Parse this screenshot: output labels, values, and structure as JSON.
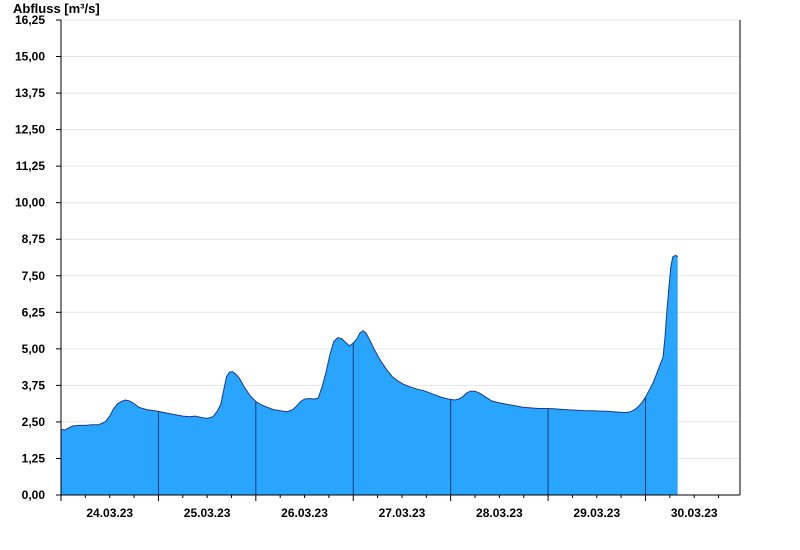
{
  "chart_data": {
    "type": "area",
    "ylabel": "Abfluss [m³/s]",
    "ylim": [
      0,
      16.25
    ],
    "yticks": [
      "0,00",
      "1,25",
      "2,50",
      "3,75",
      "5,00",
      "6,25",
      "7,50",
      "8,75",
      "10,00",
      "11,25",
      "12,50",
      "13,75",
      "15,00",
      "16,25"
    ],
    "x_day_labels": [
      "24.03.23",
      "25.03.23",
      "26.03.23",
      "27.03.23",
      "28.03.23",
      "29.03.23",
      "30.03.23"
    ],
    "grid": true,
    "colors": {
      "fill": "#29a5ff",
      "outline": "#1a3a8a",
      "grid": "#e6e6e6",
      "day_separator": "#1a3a6a"
    },
    "x_unit": "days since start of plotted period (23.03.23)",
    "series": [
      {
        "points": [
          [
            0.0,
            2.25
          ],
          [
            0.04,
            2.22
          ],
          [
            0.08,
            2.3
          ],
          [
            0.12,
            2.36
          ],
          [
            0.18,
            2.38
          ],
          [
            0.25,
            2.38
          ],
          [
            0.32,
            2.4
          ],
          [
            0.38,
            2.4
          ],
          [
            0.42,
            2.45
          ],
          [
            0.46,
            2.52
          ],
          [
            0.5,
            2.7
          ],
          [
            0.54,
            2.95
          ],
          [
            0.58,
            3.12
          ],
          [
            0.62,
            3.2
          ],
          [
            0.66,
            3.25
          ],
          [
            0.7,
            3.22
          ],
          [
            0.74,
            3.15
          ],
          [
            0.8,
            3.0
          ],
          [
            0.88,
            2.92
          ],
          [
            0.96,
            2.88
          ],
          [
            1.0,
            2.86
          ],
          [
            1.06,
            2.82
          ],
          [
            1.12,
            2.78
          ],
          [
            1.18,
            2.74
          ],
          [
            1.25,
            2.7
          ],
          [
            1.32,
            2.68
          ],
          [
            1.38,
            2.7
          ],
          [
            1.44,
            2.65
          ],
          [
            1.5,
            2.62
          ],
          [
            1.56,
            2.68
          ],
          [
            1.6,
            2.85
          ],
          [
            1.64,
            3.1
          ],
          [
            1.67,
            3.6
          ],
          [
            1.7,
            4.05
          ],
          [
            1.73,
            4.2
          ],
          [
            1.76,
            4.22
          ],
          [
            1.79,
            4.15
          ],
          [
            1.83,
            4.0
          ],
          [
            1.88,
            3.7
          ],
          [
            1.94,
            3.4
          ],
          [
            2.0,
            3.2
          ],
          [
            2.06,
            3.08
          ],
          [
            2.12,
            3.0
          ],
          [
            2.18,
            2.92
          ],
          [
            2.25,
            2.88
          ],
          [
            2.32,
            2.85
          ],
          [
            2.38,
            2.92
          ],
          [
            2.42,
            3.05
          ],
          [
            2.46,
            3.2
          ],
          [
            2.5,
            3.28
          ],
          [
            2.55,
            3.3
          ],
          [
            2.6,
            3.28
          ],
          [
            2.64,
            3.32
          ],
          [
            2.68,
            3.7
          ],
          [
            2.72,
            4.2
          ],
          [
            2.76,
            4.8
          ],
          [
            2.8,
            5.25
          ],
          [
            2.84,
            5.38
          ],
          [
            2.88,
            5.35
          ],
          [
            2.92,
            5.22
          ],
          [
            2.96,
            5.1
          ],
          [
            3.0,
            5.2
          ],
          [
            3.04,
            5.35
          ],
          [
            3.07,
            5.55
          ],
          [
            3.1,
            5.62
          ],
          [
            3.13,
            5.55
          ],
          [
            3.17,
            5.3
          ],
          [
            3.22,
            4.95
          ],
          [
            3.28,
            4.6
          ],
          [
            3.34,
            4.3
          ],
          [
            3.4,
            4.05
          ],
          [
            3.46,
            3.9
          ],
          [
            3.52,
            3.78
          ],
          [
            3.58,
            3.7
          ],
          [
            3.66,
            3.62
          ],
          [
            3.74,
            3.55
          ],
          [
            3.82,
            3.45
          ],
          [
            3.9,
            3.35
          ],
          [
            3.98,
            3.28
          ],
          [
            4.04,
            3.25
          ],
          [
            4.08,
            3.28
          ],
          [
            4.12,
            3.35
          ],
          [
            4.16,
            3.48
          ],
          [
            4.2,
            3.55
          ],
          [
            4.25,
            3.55
          ],
          [
            4.3,
            3.48
          ],
          [
            4.36,
            3.35
          ],
          [
            4.42,
            3.22
          ],
          [
            4.5,
            3.15
          ],
          [
            4.58,
            3.1
          ],
          [
            4.66,
            3.05
          ],
          [
            4.74,
            3.0
          ],
          [
            4.82,
            2.98
          ],
          [
            4.9,
            2.96
          ],
          [
            4.98,
            2.96
          ],
          [
            5.06,
            2.95
          ],
          [
            5.14,
            2.93
          ],
          [
            5.22,
            2.91
          ],
          [
            5.3,
            2.9
          ],
          [
            5.38,
            2.88
          ],
          [
            5.46,
            2.88
          ],
          [
            5.54,
            2.87
          ],
          [
            5.62,
            2.86
          ],
          [
            5.7,
            2.84
          ],
          [
            5.78,
            2.82
          ],
          [
            5.84,
            2.84
          ],
          [
            5.88,
            2.9
          ],
          [
            5.92,
            3.0
          ],
          [
            5.96,
            3.15
          ],
          [
            6.0,
            3.35
          ],
          [
            6.04,
            3.6
          ],
          [
            6.08,
            3.85
          ],
          [
            6.12,
            4.2
          ],
          [
            6.16,
            4.55
          ],
          [
            6.18,
            4.7
          ],
          [
            6.2,
            5.4
          ],
          [
            6.22,
            6.3
          ],
          [
            6.24,
            7.1
          ],
          [
            6.26,
            7.8
          ],
          [
            6.28,
            8.15
          ],
          [
            6.31,
            8.2
          ],
          [
            6.33,
            8.15
          ]
        ]
      }
    ]
  }
}
